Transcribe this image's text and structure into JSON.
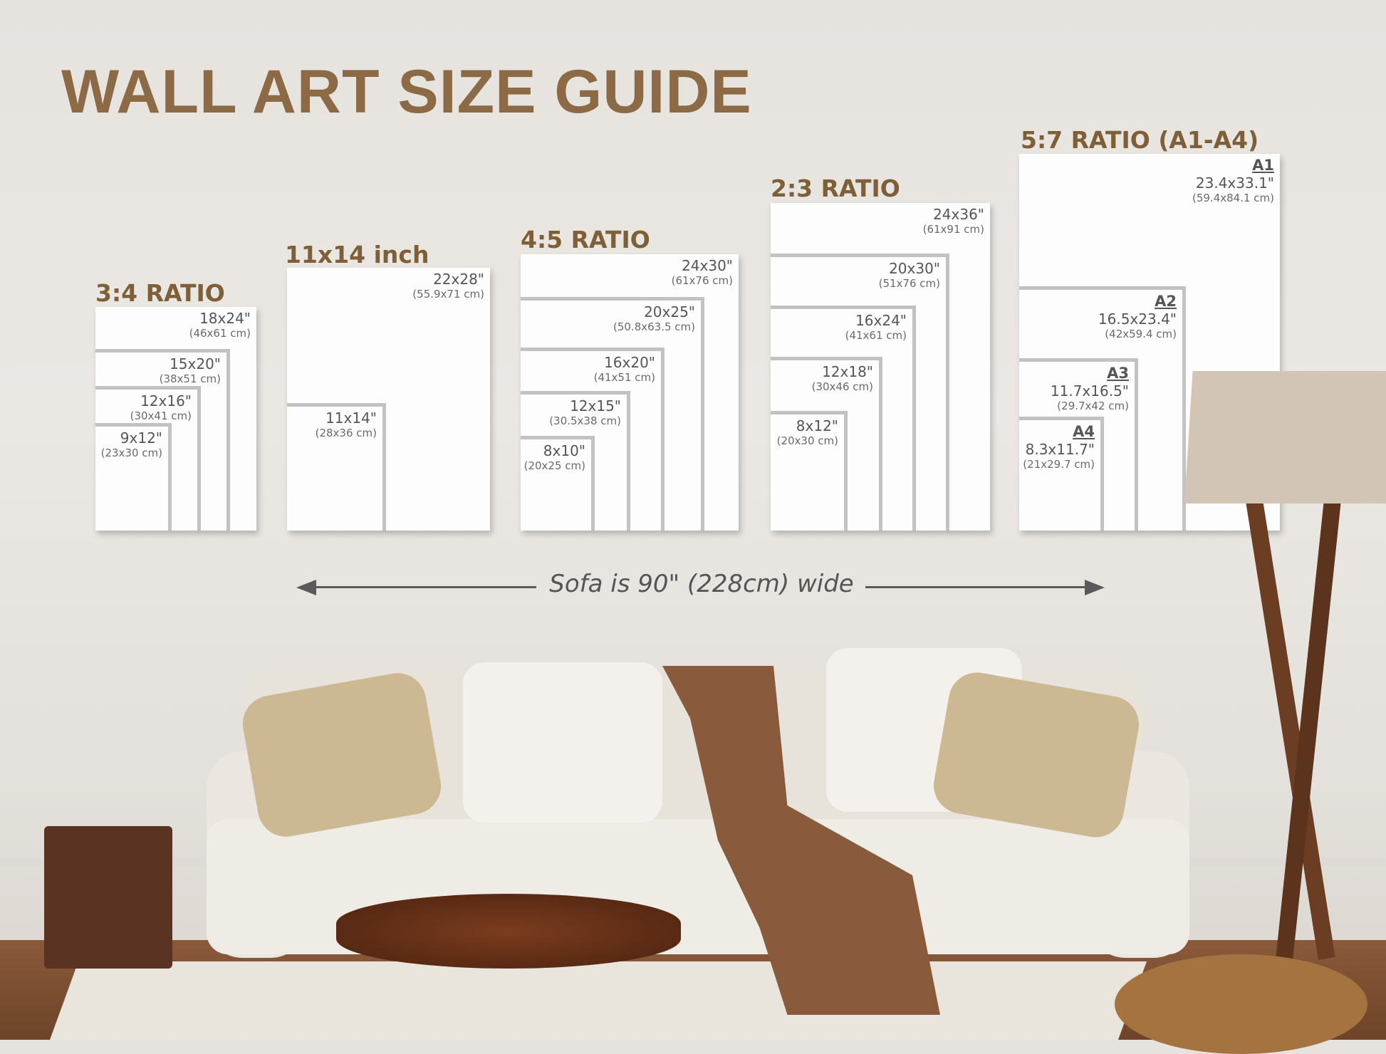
{
  "title": "WALL ART SIZE GUIDE",
  "colors": {
    "title": "#8b6a45",
    "section": "#7f5f38",
    "label": "#555555"
  },
  "groups": [
    {
      "title": "3:4 RATIO",
      "sizes": [
        {
          "in": "18x24\"",
          "cm": "(46x61 cm)"
        },
        {
          "in": "15x20\"",
          "cm": "(38x51 cm)"
        },
        {
          "in": "12x16\"",
          "cm": "(30x41 cm)"
        },
        {
          "in": "9x12\"",
          "cm": "(23x30 cm)"
        }
      ]
    },
    {
      "title": "11x14 inch",
      "sizes": [
        {
          "in": "22x28\"",
          "cm": "(55.9x71 cm)"
        },
        {
          "in": "11x14\"",
          "cm": "(28x36 cm)"
        }
      ]
    },
    {
      "title": "4:5 RATIO",
      "sizes": [
        {
          "in": "24x30\"",
          "cm": "(61x76 cm)"
        },
        {
          "in": "20x25\"",
          "cm": "(50.8x63.5 cm)"
        },
        {
          "in": "16x20\"",
          "cm": "(41x51 cm)"
        },
        {
          "in": "12x15\"",
          "cm": "(30.5x38 cm)"
        },
        {
          "in": "8x10\"",
          "cm": "(20x25 cm)"
        }
      ]
    },
    {
      "title": "2:3 RATIO",
      "sizes": [
        {
          "in": "24x36\"",
          "cm": "(61x91 cm)"
        },
        {
          "in": "20x30\"",
          "cm": "(51x76 cm)"
        },
        {
          "in": "16x24\"",
          "cm": "(41x61 cm)"
        },
        {
          "in": "12x18\"",
          "cm": "(30x46 cm)"
        },
        {
          "in": "8x12\"",
          "cm": "(20x30 cm)"
        }
      ]
    },
    {
      "title": "5:7 RATIO (A1-A4)",
      "sizes": [
        {
          "name": "A1",
          "in": "23.4x33.1\"",
          "cm": "(59.4x84.1 cm)"
        },
        {
          "name": "A2",
          "in": "16.5x23.4\"",
          "cm": "(42x59.4 cm)"
        },
        {
          "name": "A3",
          "in": "11.7x16.5\"",
          "cm": "(29.7x42 cm)"
        },
        {
          "name": "A4",
          "in": "8.3x11.7\"",
          "cm": "(21x29.7 cm)"
        }
      ]
    }
  ],
  "sofa_note": "Sofa is 90\" (228cm) wide"
}
